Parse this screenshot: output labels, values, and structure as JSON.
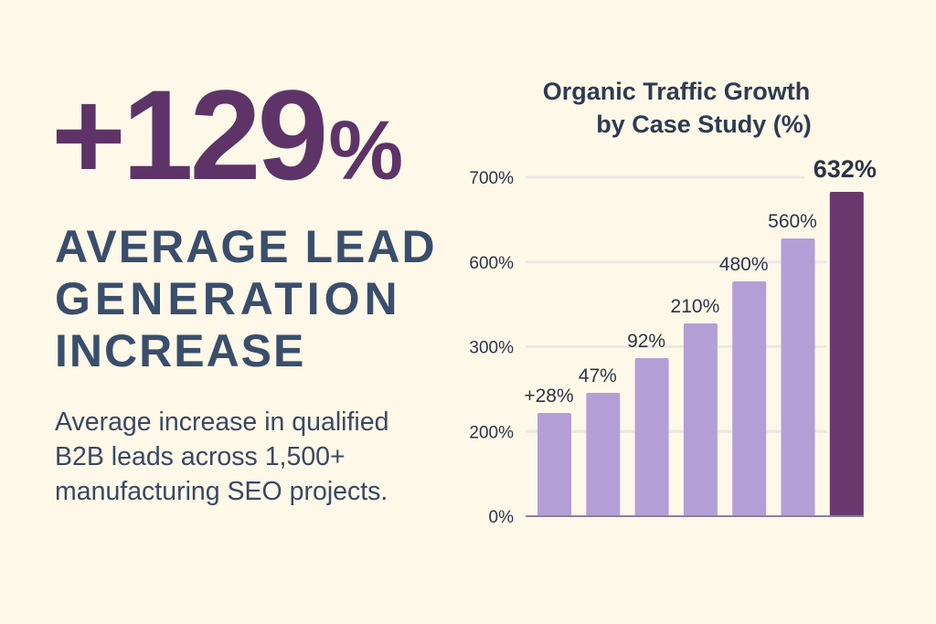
{
  "headline": {
    "big_number": "+129",
    "big_number_unit": "%",
    "lines": [
      "AVERAGE LEAD",
      "GENERATION",
      "INCREASE"
    ],
    "description": "Average increase in qualified B2B leads across 1,500+ manufacturing SEO projects."
  },
  "colors": {
    "background": "#fdf8e8",
    "accent": "#5e3468",
    "bar": "#b39fd6",
    "bar_highlight": "#6a386d",
    "text": "#2c3447"
  },
  "chart_data": {
    "type": "bar",
    "title": [
      "Organic Traffic Growth",
      "by Case Study (%)"
    ],
    "xlabel": "",
    "ylabel": "",
    "y_tick_labels": [
      "0%",
      "200%",
      "300%",
      "600%",
      "700%"
    ],
    "grid": true,
    "values": [
      28,
      47,
      92,
      210,
      480,
      560,
      632
    ],
    "data_labels": [
      "+28%",
      "47%",
      "92%",
      "210%",
      "480%",
      "560%",
      "632%"
    ],
    "highlight_index": 6
  }
}
